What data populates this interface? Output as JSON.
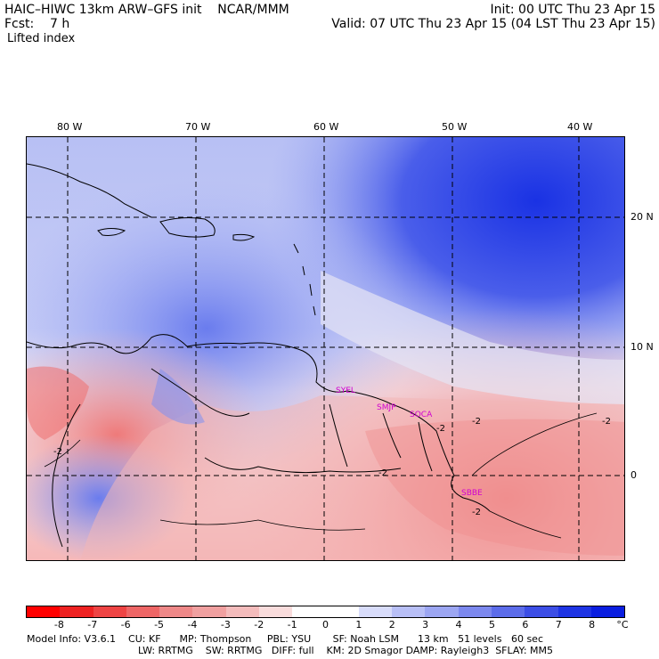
{
  "header": {
    "left_line1": "HAIC–HIWC 13km ARW–GFS init    NCAR/MMM",
    "left_line2": "Fcst:    7 h",
    "left_line3": "Lifted index",
    "right_line1": "Init: 00 UTC Thu 23 Apr 15",
    "right_line2": "Valid: 07 UTC Thu 23 Apr 15 (04 LST Thu 23 Apr 15)"
  },
  "map": {
    "lon_labels": [
      "80 W",
      "70 W",
      "60 W",
      "50 W",
      "40 W"
    ],
    "lat_labels": [
      "20 N",
      "10 N",
      "0"
    ],
    "stations": [
      "SYEL",
      "SMJP",
      "SOCA",
      "SBBE"
    ],
    "contour_labels": [
      "-2",
      "-2",
      "-2",
      "-2",
      "-2",
      "-2"
    ],
    "colors": {
      "strong_positive": "#1f3fe6",
      "positive": "#7f8ff0",
      "weak_positive": "#c9cff8",
      "neutral": "#f4f0f6",
      "weak_negative": "#f7c4c4",
      "negative": "#ef8080",
      "strong_negative": "#e53030"
    }
  },
  "colorbar": {
    "ticks": [
      "-8",
      "-7",
      "-6",
      "-5",
      "-4",
      "-3",
      "-2",
      "-1",
      "0",
      "1",
      "2",
      "3",
      "4",
      "5",
      "6",
      "7",
      "8"
    ],
    "unit": "°C",
    "colors": [
      "#ff0000",
      "#ee2222",
      "#ee4444",
      "#ee6666",
      "#ee8888",
      "#f0a0a0",
      "#f4bcbc",
      "#f9dcdc",
      "#ffffff",
      "#ffffff",
      "#d8dcfa",
      "#b8bff6",
      "#9ca6f2",
      "#7c88ee",
      "#5c6cea",
      "#3c4ee6",
      "#1e34e4",
      "#0a1ee0"
    ]
  },
  "model_info": {
    "line1": "Model Info: V3.6.1    CU: KF      MP: Thompson     PBL: YSU       SF: Noah LSM      13 km   51 levels   60 sec",
    "line2": "LW: RRTMG    SW: RRTMG   DIFF: full    KM: 2D Smagor DAMP: Rayleigh3  SFLAY: MM5"
  }
}
